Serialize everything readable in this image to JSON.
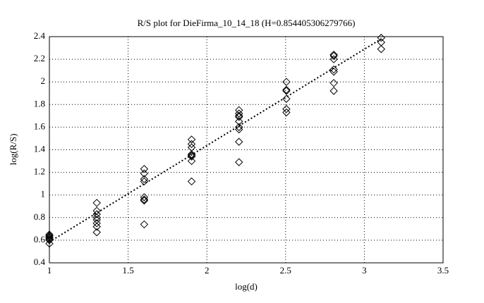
{
  "chart_data": {
    "type": "scatter",
    "title": "R/S plot for DieFirma_10_14_18 (H=0.854405306279766)",
    "x_label": "log(d)",
    "y_label": "log(R/S)",
    "xlim": [
      1,
      3.5
    ],
    "ylim": [
      0.4,
      2.4
    ],
    "xticks": [
      1,
      1.5,
      2,
      2.5,
      3,
      3.5
    ],
    "yticks": [
      0.4,
      0.6,
      0.8,
      1,
      1.2,
      1.4,
      1.6,
      1.8,
      2,
      2.2,
      2.4
    ],
    "grid": true,
    "series": [
      {
        "marker": "diamond",
        "color": "#000000",
        "x": [
          1,
          1,
          1,
          1,
          1,
          1,
          1,
          1.301,
          1.301,
          1.301,
          1.301,
          1.301,
          1.301,
          1.301,
          1.301,
          1.602,
          1.602,
          1.602,
          1.602,
          1.602,
          1.602,
          1.602,
          1.602,
          1.903,
          1.903,
          1.903,
          1.903,
          1.903,
          1.903,
          1.903,
          1.903,
          2.204,
          2.204,
          2.204,
          2.204,
          2.204,
          2.204,
          2.204,
          2.204,
          2.204,
          2.505,
          2.505,
          2.505,
          2.505,
          2.505,
          2.505,
          2.806,
          2.806,
          2.806,
          2.806,
          2.806,
          2.806,
          2.806,
          3.107,
          3.107,
          3.107
        ],
        "values": [
          0.57,
          0.6,
          0.61,
          0.62,
          0.63,
          0.64,
          0.65,
          0.93,
          0.86,
          0.83,
          0.8,
          0.78,
          0.75,
          0.72,
          0.67,
          1.23,
          1.19,
          1.14,
          1.12,
          0.98,
          0.96,
          0.95,
          0.74,
          1.49,
          1.45,
          1.42,
          1.36,
          1.35,
          1.34,
          1.3,
          1.12,
          1.75,
          1.72,
          1.7,
          1.69,
          1.65,
          1.6,
          1.58,
          1.47,
          1.29,
          2.0,
          1.93,
          1.92,
          1.85,
          1.76,
          1.73,
          2.24,
          2.23,
          2.2,
          2.11,
          2.09,
          1.99,
          1.92,
          2.39,
          2.35,
          2.29
        ]
      },
      {
        "line": "dotted",
        "color": "#000000",
        "x": [
          1,
          3.107
        ],
        "values": [
          0.585,
          2.38
        ]
      }
    ]
  }
}
